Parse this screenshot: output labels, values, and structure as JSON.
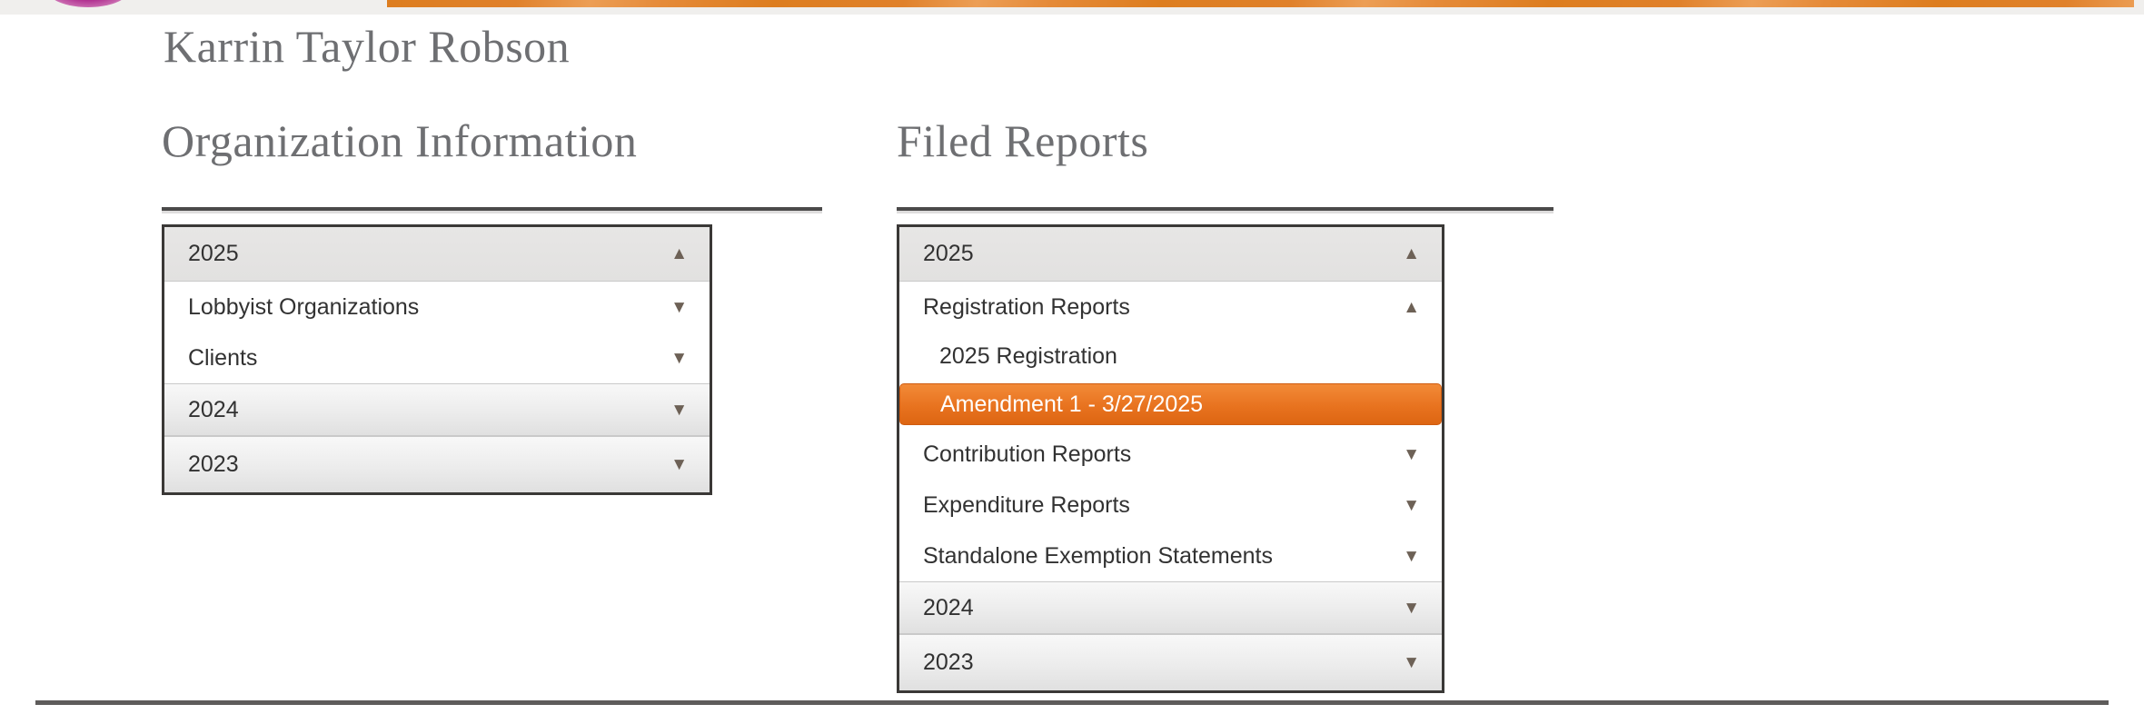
{
  "page": {
    "title": "Karrin Taylor Robson"
  },
  "icons": {
    "up": "▲",
    "down": "▼"
  },
  "colors": {
    "banner_orange": "#e0812b",
    "logo_magenta": "#a81f7e",
    "selected_gradient_top": "#f28a38",
    "selected_gradient_bottom": "#dd6512",
    "heading_gray": "#6e6f72",
    "panel_border": "#3a3836"
  },
  "org_info": {
    "heading": "Organization Information",
    "items": [
      {
        "label": "2025",
        "level": 1,
        "state": "expanded",
        "arrow": "up"
      },
      {
        "label": "Lobbyist Organizations",
        "level": 2,
        "state": "collapsed",
        "arrow": "down"
      },
      {
        "label": "Clients",
        "level": 2,
        "state": "collapsed",
        "arrow": "down"
      },
      {
        "label": "2024",
        "level": 1,
        "state": "collapsed",
        "arrow": "down"
      },
      {
        "label": "2023",
        "level": 1,
        "state": "collapsed",
        "arrow": "down"
      }
    ]
  },
  "filed_reports": {
    "heading": "Filed Reports",
    "items": [
      {
        "label": "2025",
        "level": 1,
        "state": "expanded",
        "arrow": "up"
      },
      {
        "label": "Registration Reports",
        "level": 2,
        "state": "expanded",
        "arrow": "up"
      },
      {
        "label": "2025 Registration",
        "level": 3
      },
      {
        "label": "Amendment 1 - 3/27/2025",
        "level": 3,
        "selected": true
      },
      {
        "label": "Contribution Reports",
        "level": 2,
        "state": "collapsed",
        "arrow": "down"
      },
      {
        "label": "Expenditure Reports",
        "level": 2,
        "state": "collapsed",
        "arrow": "down"
      },
      {
        "label": "Standalone Exemption Statements",
        "level": 2,
        "state": "collapsed",
        "arrow": "down"
      },
      {
        "label": "2024",
        "level": 1,
        "state": "collapsed",
        "arrow": "down"
      },
      {
        "label": "2023",
        "level": 1,
        "state": "collapsed",
        "arrow": "down"
      }
    ]
  }
}
